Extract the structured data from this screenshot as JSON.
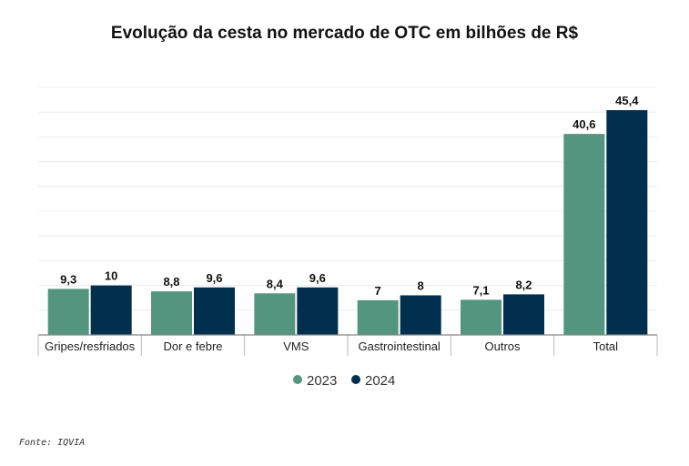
{
  "chart_data": {
    "type": "bar",
    "title": "Evolução da cesta no mercado de OTC em bilhões de R$",
    "categories": [
      "Gripes/resfriados",
      "Dor e febre",
      "VMS",
      "Gastrointestinal",
      "Outros",
      "Total"
    ],
    "series": [
      {
        "name": "2023",
        "color": "#53957f",
        "values": [
          9.3,
          8.8,
          8.4,
          7,
          7.1,
          40.6
        ],
        "labels": [
          "9,3",
          "8,8",
          "8,4",
          "7",
          "7,1",
          "40,6"
        ]
      },
      {
        "name": "2024",
        "color": "#01304f",
        "values": [
          10,
          9.6,
          9.6,
          8,
          8.2,
          45.4
        ],
        "labels": [
          "10",
          "9,6",
          "9,6",
          "8",
          "8,2",
          "45,4"
        ]
      }
    ],
    "xlabel": "",
    "ylabel": "",
    "ylim": [
      0,
      50
    ],
    "grid": true,
    "legend": "bottom"
  },
  "source": "Fonte: IQVIA"
}
